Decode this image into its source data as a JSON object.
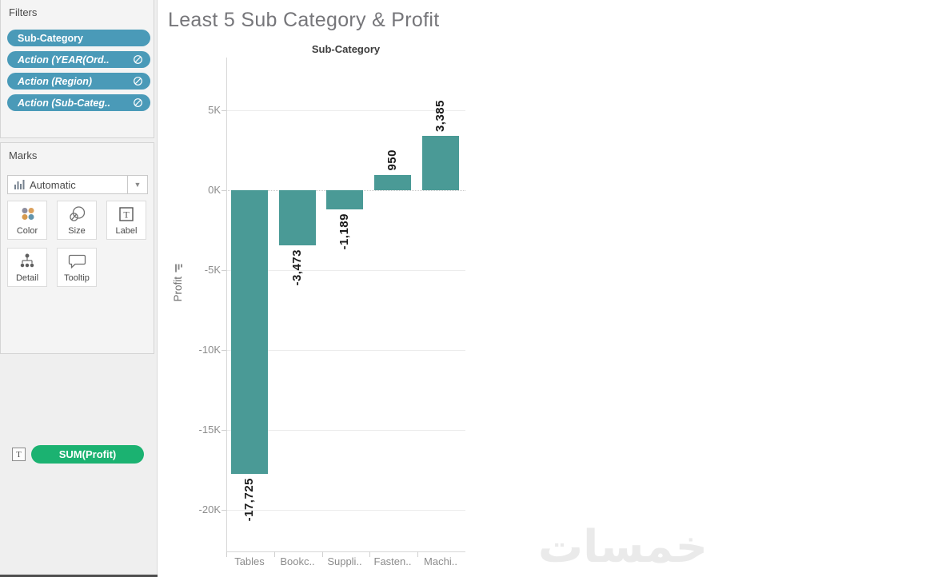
{
  "sidebar": {
    "filters": {
      "title": "Filters",
      "pills": [
        {
          "label": "Sub-Category",
          "italic": false,
          "icon": false
        },
        {
          "label": "Action (YEAR(Ord..",
          "italic": true,
          "icon": true
        },
        {
          "label": "Action (Region)",
          "italic": true,
          "icon": true
        },
        {
          "label": "Action (Sub-Categ..",
          "italic": true,
          "icon": true
        }
      ]
    },
    "marks": {
      "title": "Marks",
      "mark_type_label": "Automatic",
      "buttons": [
        {
          "label": "Color"
        },
        {
          "label": "Size"
        },
        {
          "label": "Label"
        },
        {
          "label": "Detail"
        },
        {
          "label": "Tooltip"
        }
      ],
      "text_encoding_pill": "SUM(Profit)"
    }
  },
  "main": {
    "watermark": "خمسات"
  },
  "chart_data": {
    "type": "bar",
    "title": "Least 5 Sub Category & Profit",
    "column_header": "Sub-Category",
    "categories": [
      "Tables",
      "Bookc..",
      "Suppli..",
      "Fasten..",
      "Machi.."
    ],
    "values": [
      -17725,
      -3473,
      -1189,
      950,
      3385
    ],
    "bar_labels": [
      "-17,725",
      "-3,473",
      "-1,189",
      "950",
      "3,385"
    ],
    "ylabel": "Profit",
    "xlabel": "",
    "y_ticks": [
      {
        "label": "5K",
        "value": 5000
      },
      {
        "label": "0K",
        "value": 0
      },
      {
        "label": "-5K",
        "value": -5000
      },
      {
        "label": "-10K",
        "value": -10000
      },
      {
        "label": "-15K",
        "value": -15000
      },
      {
        "label": "-20K",
        "value": -20000
      }
    ],
    "ylim": [
      -22500,
      8300
    ],
    "grid": "horizontal",
    "zero_line": "dotted",
    "legend": "none",
    "bar_color": "#4a9a96"
  },
  "colors": {
    "filter_pill_blue": "#4a9ab8",
    "measure_pill_green": "#1bb271",
    "bar_teal": "#4a9a96",
    "title_gray": "#76767a"
  }
}
